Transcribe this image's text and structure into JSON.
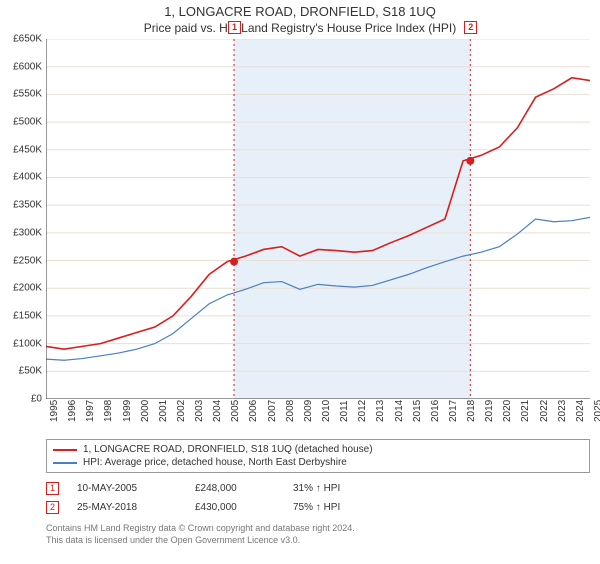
{
  "title": "1, LONGACRE ROAD, DRONFIELD, S18 1UQ",
  "subtitle": "Price paid vs. HM Land Registry's House Price Index (HPI)",
  "chart": {
    "type": "line",
    "background_color": "#ffffff",
    "shade_color": "#e7f0f8",
    "grid_color": "#e9dfd4",
    "axis_color": "#333333",
    "ylim": [
      0,
      650000
    ],
    "ytick_step": 50000,
    "ytick_prefix": "£",
    "ytick_suffix": "K",
    "xlim": [
      1995,
      2025
    ],
    "xtick_step": 1,
    "series": [
      {
        "name": "1, LONGACRE ROAD, DRONFIELD, S18 1UQ (detached house)",
        "color": "#d91e1e",
        "width": 1.6,
        "data": [
          [
            1995,
            95000
          ],
          [
            1996,
            90000
          ],
          [
            1997,
            95000
          ],
          [
            1998,
            100000
          ],
          [
            1999,
            110000
          ],
          [
            2000,
            120000
          ],
          [
            2001,
            130000
          ],
          [
            2002,
            150000
          ],
          [
            2003,
            185000
          ],
          [
            2004,
            225000
          ],
          [
            2005,
            248000
          ],
          [
            2006,
            258000
          ],
          [
            2007,
            270000
          ],
          [
            2008,
            275000
          ],
          [
            2009,
            258000
          ],
          [
            2010,
            270000
          ],
          [
            2011,
            268000
          ],
          [
            2012,
            265000
          ],
          [
            2013,
            268000
          ],
          [
            2014,
            282000
          ],
          [
            2015,
            295000
          ],
          [
            2016,
            310000
          ],
          [
            2017,
            325000
          ],
          [
            2018,
            430000
          ],
          [
            2019,
            440000
          ],
          [
            2020,
            455000
          ],
          [
            2021,
            490000
          ],
          [
            2022,
            545000
          ],
          [
            2023,
            560000
          ],
          [
            2024,
            580000
          ],
          [
            2025,
            575000
          ]
        ]
      },
      {
        "name": "HPI: Average price, detached house, North East Derbyshire",
        "color": "#4a7fc2",
        "width": 1.2,
        "data": [
          [
            1995,
            72000
          ],
          [
            1996,
            70000
          ],
          [
            1997,
            73000
          ],
          [
            1998,
            78000
          ],
          [
            1999,
            83000
          ],
          [
            2000,
            90000
          ],
          [
            2001,
            100000
          ],
          [
            2002,
            118000
          ],
          [
            2003,
            145000
          ],
          [
            2004,
            172000
          ],
          [
            2005,
            188000
          ],
          [
            2006,
            198000
          ],
          [
            2007,
            210000
          ],
          [
            2008,
            212000
          ],
          [
            2009,
            198000
          ],
          [
            2010,
            207000
          ],
          [
            2011,
            204000
          ],
          [
            2012,
            202000
          ],
          [
            2013,
            205000
          ],
          [
            2014,
            215000
          ],
          [
            2015,
            225000
          ],
          [
            2016,
            237000
          ],
          [
            2017,
            248000
          ],
          [
            2018,
            258000
          ],
          [
            2019,
            265000
          ],
          [
            2020,
            275000
          ],
          [
            2021,
            298000
          ],
          [
            2022,
            325000
          ],
          [
            2023,
            320000
          ],
          [
            2024,
            322000
          ],
          [
            2025,
            328000
          ]
        ]
      }
    ],
    "markers": [
      {
        "n": "1",
        "x": 2005.37,
        "y": 248000,
        "color": "#d91e1e",
        "vline": true
      },
      {
        "n": "2",
        "x": 2018.4,
        "y": 430000,
        "color": "#d91e1e",
        "vline": true
      }
    ],
    "shade": [
      2005.37,
      2018.4
    ]
  },
  "legend_label_prefix": "",
  "trades": [
    {
      "n": "1",
      "date": "10-MAY-2005",
      "price": "£248,000",
      "delta": "31% ↑ HPI",
      "color": "#d91e1e"
    },
    {
      "n": "2",
      "date": "25-MAY-2018",
      "price": "£430,000",
      "delta": "75% ↑ HPI",
      "color": "#d91e1e"
    }
  ],
  "footer": {
    "line1": "Contains HM Land Registry data © Crown copyright and database right 2024.",
    "line2": "This data is licensed under the Open Government Licence v3.0."
  }
}
